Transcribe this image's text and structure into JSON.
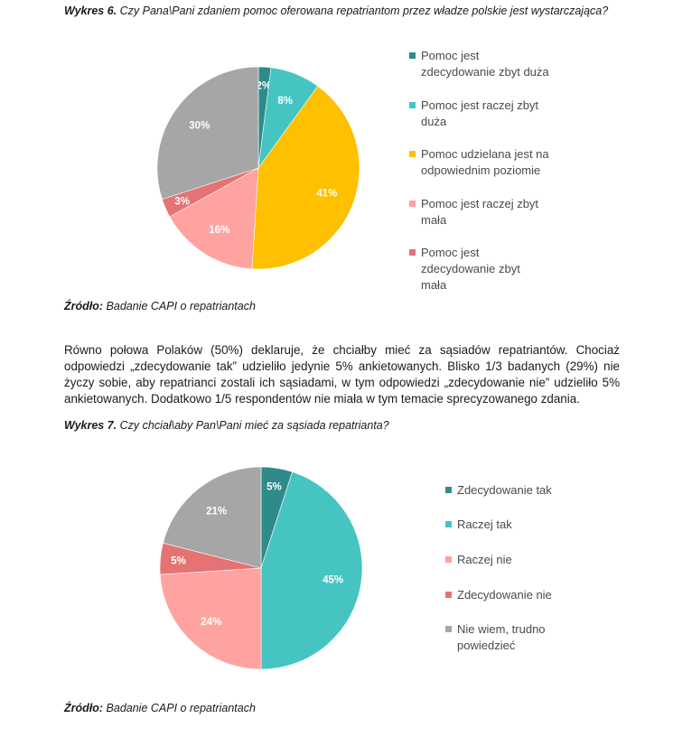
{
  "charts": [
    {
      "caption_label": "Wykres 6.",
      "caption_text": "Czy Pana\\Pani zdaniem pomoc oferowana repatriantom przez władze polskie jest wystarczająca?",
      "source_label": "Źródło:",
      "source_text": "Badanie CAPI o repatriantach"
    },
    {
      "caption_label": "Wykres 7.",
      "caption_text": "Czy chciał\\aby Pan\\Pani mieć za sąsiada repatrianta?",
      "source_label": "Źródło:",
      "source_text": "Badanie CAPI o repatriantach"
    }
  ],
  "paragraph": "Równo połowa Polaków (50%) deklaruje, że chciałby mieć za sąsiadów repatriantów. Chociaż odpowiedzi „zdecydowanie tak” udzieliło jedynie 5% ankietowanych. Blisko 1/3 badanych (29%) nie życzy sobie, aby repatrianci zostali ich sąsiadami, w tym odpowiedzi „zdecydowanie nie” udzieliło 5% ankietowanych. Dodatkowo 1/5 respondentów nie miała w tym temacie sprecyzowanego zdania.",
  "chart_data": [
    {
      "type": "pie",
      "title": "Czy Pana\\Pani zdaniem pomoc oferowana repatriantom przez władze polskie jest wystarczająca?",
      "categories": [
        "Pomoc jest zdecydowanie zbyt duża",
        "Pomoc jest raczej zbyt duża",
        "Pomoc udzielana jest na odpowiednim poziomie",
        "Pomoc jest raczej zbyt mała",
        "Pomoc jest zdecydowanie zbyt mała",
        ""
      ],
      "values": [
        2,
        8,
        41,
        16,
        3,
        30
      ],
      "labels": [
        "2%",
        "8%",
        "41%",
        "16%",
        "3%",
        "30%"
      ],
      "colors": [
        "#2e8b8a",
        "#45c4c2",
        "#ffc000",
        "#ffa3a0",
        "#e57373",
        "#a6a6a6"
      ],
      "legend_lines": [
        [
          "Pomoc jest",
          "zdecydowanie zbyt duża"
        ],
        [
          "Pomoc jest raczej zbyt",
          "duża"
        ],
        [
          "Pomoc udzielana jest na",
          "odpowiednim poziomie"
        ],
        [
          "Pomoc jest raczej zbyt",
          "mała"
        ],
        [
          "Pomoc jest",
          "zdecydowanie zbyt",
          "mała"
        ]
      ],
      "legend_position": "right"
    },
    {
      "type": "pie",
      "title": "Czy chciał\\aby Pan\\Pani mieć za sąsiada repatrianta?",
      "categories": [
        "Zdecydowanie tak",
        "Raczej tak",
        "Raczej nie",
        "Zdecydowanie nie",
        "Nie wiem, trudno powiedzieć"
      ],
      "values": [
        5,
        45,
        24,
        5,
        21
      ],
      "labels": [
        "5%",
        "45%",
        "24%",
        "5%",
        "21%"
      ],
      "colors": [
        "#2e8b8a",
        "#45c4c2",
        "#ffa3a0",
        "#e57373",
        "#a6a6a6"
      ],
      "legend_lines": [
        [
          "Zdecydowanie tak"
        ],
        [
          "Raczej tak"
        ],
        [
          "Raczej nie"
        ],
        [
          "Zdecydowanie nie"
        ],
        [
          "Nie wiem, trudno",
          "powiedzieć"
        ]
      ],
      "legend_position": "right"
    }
  ]
}
